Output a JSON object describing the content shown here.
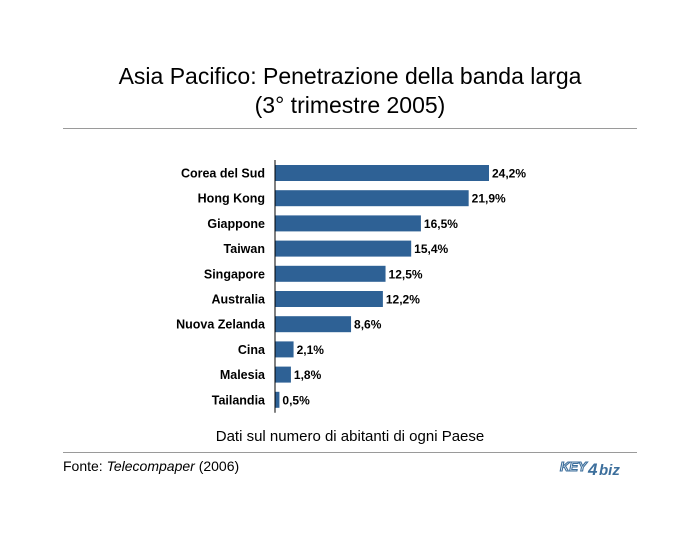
{
  "title_line1": "Asia Pacifico: Penetrazione della banda larga",
  "title_line2": "(3° trimestre 2005)",
  "caption": "Dati sul numero di abitanti di ogni Paese",
  "source": {
    "prefix": "Fonte: ",
    "name": "Telecompaper",
    "suffix": " (2006)"
  },
  "logo": {
    "part1": "KEY",
    "part2": "4",
    "part3": "biz",
    "color": "#3d6f9c"
  },
  "chart_data": {
    "type": "bar",
    "orientation": "horizontal",
    "categories": [
      "Corea del Sud",
      "Hong Kong",
      "Giappone",
      "Taiwan",
      "Singapore",
      "Australia",
      "Nuova Zelanda",
      "Cina",
      "Malesia",
      "Tailandia"
    ],
    "values": [
      24.2,
      21.9,
      16.5,
      15.4,
      12.5,
      12.2,
      8.6,
      2.1,
      1.8,
      0.5
    ],
    "value_labels": [
      "24,2%",
      "21,9%",
      "16,5%",
      "15,4%",
      "12,5%",
      "12,2%",
      "8,6%",
      "2,1%",
      "1,8%",
      "0,5%"
    ],
    "bar_color": "#2e6195",
    "grid": false,
    "xlim": [
      0,
      24.2
    ]
  }
}
